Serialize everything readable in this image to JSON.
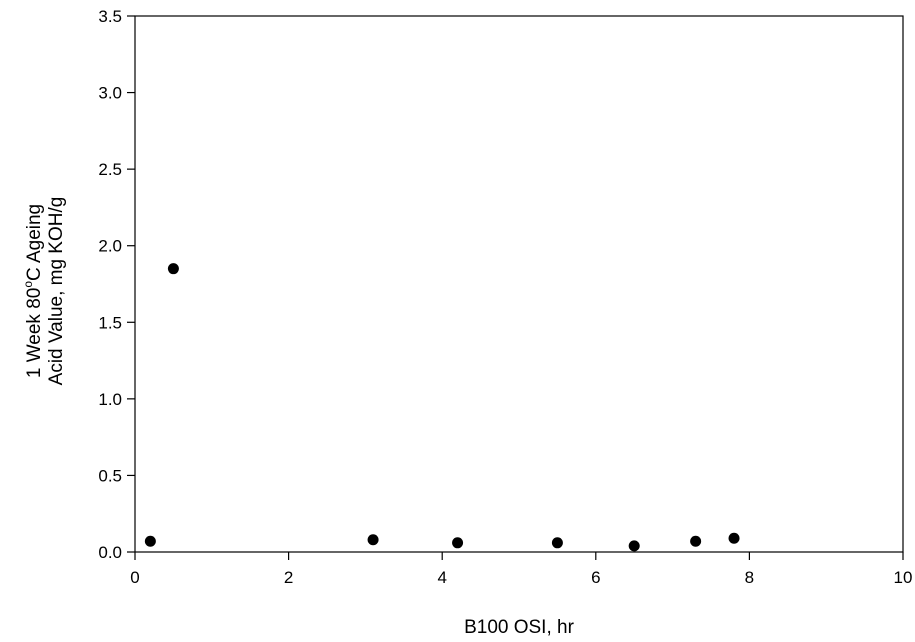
{
  "chart_data": {
    "type": "scatter",
    "xlabel": "B100 OSI, hr",
    "ylabel_line1": "1 Week 80",
    "ylabel_degree": "o",
    "ylabel_line1_rest": "C Ageing",
    "ylabel_line2": "Acid Value, mg KOH/g",
    "xlim": [
      0,
      10
    ],
    "ylim": [
      0,
      3.5
    ],
    "x_ticks": [
      0,
      2,
      4,
      6,
      8,
      10
    ],
    "y_ticks": [
      0.0,
      0.5,
      1.0,
      1.5,
      2.0,
      2.5,
      3.0,
      3.5
    ],
    "x_tick_labels": [
      "0",
      "2",
      "4",
      "6",
      "8",
      "10"
    ],
    "y_tick_labels": [
      "0.0",
      "0.5",
      "1.0",
      "1.5",
      "2.0",
      "2.5",
      "3.0",
      "3.5"
    ],
    "grid": false,
    "marker_color": "#000000",
    "points": [
      {
        "x": 0.2,
        "y": 0.07
      },
      {
        "x": 0.5,
        "y": 1.85
      },
      {
        "x": 3.1,
        "y": 0.08
      },
      {
        "x": 4.2,
        "y": 0.06
      },
      {
        "x": 5.5,
        "y": 0.06
      },
      {
        "x": 6.5,
        "y": 0.04
      },
      {
        "x": 7.3,
        "y": 0.07
      },
      {
        "x": 7.8,
        "y": 0.09
      }
    ]
  }
}
